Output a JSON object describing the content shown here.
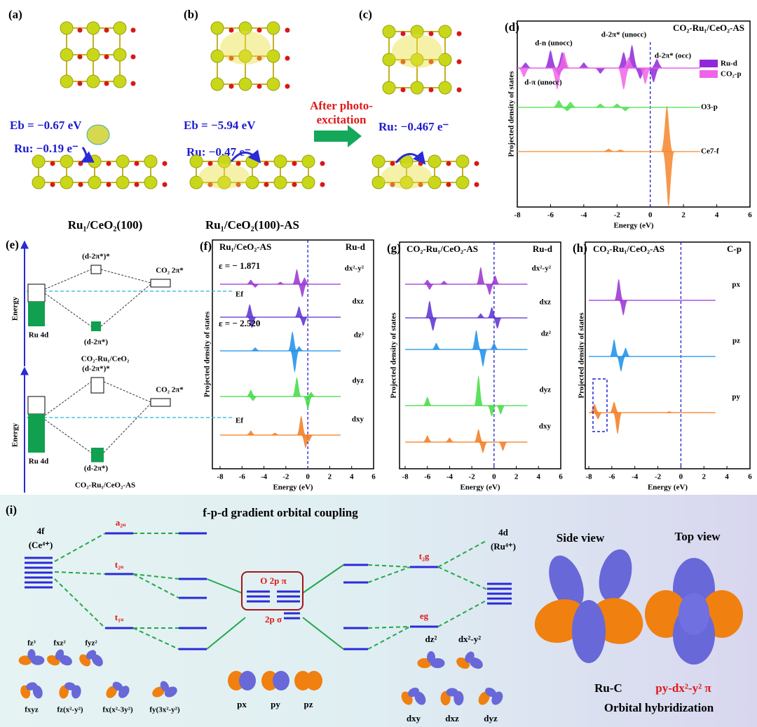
{
  "panel_a": {
    "label": "(a)",
    "eb": "Eb = −0.67 eV",
    "charge": "Ru: −0.19 e⁻",
    "caption": "Ru₁/CeO₂(100)"
  },
  "panel_b": {
    "label": "(b)",
    "eb": "Eb = −5.94 eV",
    "charge": "Ru: −0.47 e⁻",
    "caption": "Ru₁/CeO₂(100)-AS"
  },
  "panel_c": {
    "label": "(c)",
    "charge": "Ru: −0.467 e⁻"
  },
  "arrow_text": [
    "After photo-",
    "excitation"
  ],
  "panel_d": {
    "label": "(d)",
    "title": "CO₂-Ru₁/CeO₂-AS",
    "xlabel": "Energy (eV)",
    "ylabel": "Projected density of states",
    "xlim": [
      -8,
      6
    ],
    "xticks": [
      -8,
      -6,
      -4,
      -2,
      0,
      2,
      4,
      6
    ],
    "fermi": 0,
    "annotations": [
      "d-n (unocc)",
      "d-2π* (unocc)",
      "d-2π* (occ)",
      "d-π (unocc)"
    ],
    "curves": [
      {
        "name": "Ru-d",
        "color": "#9028d8",
        "peaks": [
          {
            "x": -7.5,
            "h": 0.3
          },
          {
            "x": -6,
            "h": 1
          },
          {
            "x": -5.3,
            "h": 0.9
          },
          {
            "x": -5.5,
            "h": -0.4
          },
          {
            "x": -4,
            "h": 0.3
          },
          {
            "x": -3,
            "h": -0.3
          },
          {
            "x": -1.6,
            "h": 0.9
          },
          {
            "x": -1.1,
            "h": 1.3
          },
          {
            "x": -0.6,
            "h": -0.6
          },
          {
            "x": 0.2,
            "h": -0.8
          },
          {
            "x": 0.4,
            "h": 0.5
          }
        ]
      },
      {
        "name": "CO₂-p",
        "color": "#f064e8",
        "peaks": [
          {
            "x": -7.6,
            "h": -0.5
          },
          {
            "x": -5.6,
            "h": -1.2
          },
          {
            "x": -5.2,
            "h": 0.9
          },
          {
            "x": -1.6,
            "h": -1.2
          },
          {
            "x": -1.3,
            "h": 0.6
          },
          {
            "x": -0.3,
            "h": -0.9
          }
        ]
      },
      {
        "name": "O3-p",
        "color": "#4be04b",
        "peaks": [
          {
            "x": -5.5,
            "h": 0.4
          },
          {
            "x": -5,
            "h": -0.2
          },
          {
            "x": -4.8,
            "h": 0.3
          },
          {
            "x": -3,
            "h": 0.2
          },
          {
            "x": -2,
            "h": 0.2
          },
          {
            "x": -1.5,
            "h": -0.2
          }
        ]
      },
      {
        "name": "Ce7-f",
        "color": "#f5862a",
        "peaks": [
          {
            "x": -2.5,
            "h": 0.15
          },
          {
            "x": -1.8,
            "h": 0.1
          },
          {
            "x": 1,
            "h": 2.6
          },
          {
            "x": 1.1,
            "h": -3.1
          }
        ]
      }
    ]
  },
  "panel_e": {
    "label": "(e)",
    "diagrams": [
      {
        "axis": "Energy",
        "upper": "(d-2π*)*",
        "co2": "CO₂ 2π*",
        "fermi": "Ef",
        "ru": "Ru 4d",
        "lower": "(d-2π*)",
        "caption": "CO₂-Ru₁/CeO₂"
      },
      {
        "axis": "Energy",
        "upper": "(d-2π*)*",
        "co2": "CO₂ 2π*",
        "fermi": "Ef",
        "ru": "Ru 4d",
        "lower": "(d-2π*)",
        "caption": "CO₂-Ru₁/CeO₂-AS"
      }
    ]
  },
  "panel_f": {
    "label": "(f)",
    "title": "Ru₁/CeO₂-AS",
    "species": "Ru-d",
    "xlabel": "Energy (eV)",
    "ylabel": "Projected density of states",
    "xlim": [
      -8,
      6
    ],
    "xticks": [
      -8,
      -6,
      -4,
      -2,
      0,
      2,
      4,
      6
    ],
    "fermi": 0,
    "annotations": [
      {
        "text": "ε = − 1.871",
        "color": "#9b30d0"
      },
      {
        "text": "ε = − 2.520",
        "color": "#1a8fe8"
      }
    ],
    "curves": [
      {
        "name": "dx²-y²",
        "color": "#9b30d0",
        "peaks": [
          {
            "x": -5.2,
            "h": 0.2
          },
          {
            "x": -4.8,
            "h": -0.15
          },
          {
            "x": -2.5,
            "h": 0.1
          },
          {
            "x": -1,
            "h": 0.7
          },
          {
            "x": -0.5,
            "h": -0.6
          },
          {
            "x": -0.3,
            "h": 0.3
          }
        ]
      },
      {
        "name": "dxz",
        "color": "#5a2ed0",
        "peaks": [
          {
            "x": -5.3,
            "h": 0.6
          },
          {
            "x": -5.1,
            "h": -0.5
          },
          {
            "x": -0.8,
            "h": 0.5
          },
          {
            "x": -0.4,
            "h": -0.4
          }
        ]
      },
      {
        "name": "dz²",
        "color": "#1a8fe8",
        "peaks": [
          {
            "x": -4.8,
            "h": 0.15
          },
          {
            "x": -1.4,
            "h": 0.9
          },
          {
            "x": -1.2,
            "h": -1
          },
          {
            "x": -0.8,
            "h": 0.2
          }
        ]
      },
      {
        "name": "dyz",
        "color": "#3fdc3f",
        "peaks": [
          {
            "x": -5.2,
            "h": 0.3
          },
          {
            "x": -5,
            "h": -0.2
          },
          {
            "x": -1,
            "h": 0.9
          },
          {
            "x": 0,
            "h": -0.6
          },
          {
            "x": 0.3,
            "h": 0.2
          }
        ]
      },
      {
        "name": "dxy",
        "color": "#f47a1e",
        "peaks": [
          {
            "x": -5.2,
            "h": 0.2
          },
          {
            "x": -3,
            "h": 0.1
          },
          {
            "x": -0.6,
            "h": 0.9
          },
          {
            "x": -0.2,
            "h": -0.6
          },
          {
            "x": 0.1,
            "h": -0.3
          }
        ]
      }
    ]
  },
  "panel_g": {
    "label": "(g)",
    "title": "CO₂-Ru₁/CeO₂-AS",
    "species": "Ru-d",
    "xlabel": "Energy (eV)",
    "ylabel": "Projected density of states",
    "xlim": [
      -8,
      6
    ],
    "xticks": [
      -8,
      -6,
      -4,
      -2,
      0,
      2,
      4,
      6
    ],
    "fermi": 0,
    "curves": [
      {
        "name": "dx²-y²",
        "color": "#9b30d0",
        "peaks": [
          {
            "x": -6,
            "h": 0.2
          },
          {
            "x": -5.8,
            "h": -0.25
          },
          {
            "x": -4.5,
            "h": 0.15
          },
          {
            "x": -1.2,
            "h": 0.8
          },
          {
            "x": -0.4,
            "h": -0.5
          },
          {
            "x": 0.1,
            "h": 0.4
          }
        ]
      },
      {
        "name": "dxz",
        "color": "#5a2ed0",
        "peaks": [
          {
            "x": -5.8,
            "h": 0.8
          },
          {
            "x": -5.5,
            "h": -0.6
          },
          {
            "x": -1.2,
            "h": 0.2
          },
          {
            "x": -0.2,
            "h": 0.5
          },
          {
            "x": 0.3,
            "h": -0.5
          }
        ]
      },
      {
        "name": "dz²",
        "color": "#1a8fe8",
        "peaks": [
          {
            "x": -5.2,
            "h": 0.3
          },
          {
            "x": -1.6,
            "h": 0.9
          },
          {
            "x": -1,
            "h": -0.8
          },
          {
            "x": 0,
            "h": 0.3
          }
        ]
      },
      {
        "name": "dyz",
        "color": "#3fdc3f",
        "peaks": [
          {
            "x": -6,
            "h": 0.4
          },
          {
            "x": -1.4,
            "h": 1.4
          },
          {
            "x": -0.2,
            "h": -0.5
          },
          {
            "x": 0.6,
            "h": -0.4
          }
        ]
      },
      {
        "name": "dxy",
        "color": "#f47a1e",
        "peaks": [
          {
            "x": -6,
            "h": 0.3
          },
          {
            "x": -4,
            "h": 0.2
          },
          {
            "x": -1.4,
            "h": 0.6
          },
          {
            "x": -1,
            "h": -0.5
          },
          {
            "x": 0.8,
            "h": -0.4
          }
        ]
      }
    ]
  },
  "panel_h": {
    "label": "(h)",
    "title": "CO₂-Ru₁/CeO₂-AS",
    "species": "C-p",
    "xlabel": "Energy (eV)",
    "ylabel": "Projected density of states",
    "xlim": [
      -8,
      6
    ],
    "xticks": [
      -8,
      -6,
      -4,
      -2,
      0,
      2,
      4,
      6
    ],
    "fermi": 0,
    "curves": [
      {
        "name": "px",
        "color": "#9b30d0",
        "peaks": [
          {
            "x": -5.4,
            "h": 1.0
          },
          {
            "x": -5,
            "h": -0.7
          }
        ]
      },
      {
        "name": "pz",
        "color": "#1a8fe8",
        "peaks": [
          {
            "x": -5.8,
            "h": 0.8
          },
          {
            "x": -5.2,
            "h": -0.7
          },
          {
            "x": -4.8,
            "h": 0.4
          }
        ]
      },
      {
        "name": "py",
        "color": "#f47a1e",
        "peaks": [
          {
            "x": -7.5,
            "h": 0.4
          },
          {
            "x": -7.2,
            "h": -0.3
          },
          {
            "x": -5.8,
            "h": 0.5
          },
          {
            "x": -5.5,
            "h": -1.0
          },
          {
            "x": -1,
            "h": 0.05
          }
        ]
      }
    ]
  },
  "panel_i": {
    "label": "(i)",
    "title": "f-p-d gradient orbital coupling",
    "ce": [
      "4f",
      "(Ce⁴⁺)"
    ],
    "ru": [
      "4d",
      "(Ru⁴⁺)"
    ],
    "levels": [
      "a₂ᵤ",
      "t₂ᵤ",
      "t₁ᵤ",
      "t₂g",
      "eg"
    ],
    "o2p": [
      "O 2p π",
      "2p σ"
    ],
    "f_orbitals": [
      "fz³",
      "fxz²",
      "fyz²",
      "fxyz",
      "fz(x²-y²)",
      "fx(x²-3y²)",
      "fy(3x²-y²)"
    ],
    "p_orbitals": [
      "px",
      "py",
      "pz"
    ],
    "d_orbitals": [
      "dz²",
      "dx²-y²",
      "dxy",
      "dxz",
      "dyz"
    ],
    "views": [
      "Side view",
      "Top view"
    ],
    "hybrid": [
      "Ru-C",
      "py-dx²-y² π",
      "Orbital hybridization"
    ]
  }
}
